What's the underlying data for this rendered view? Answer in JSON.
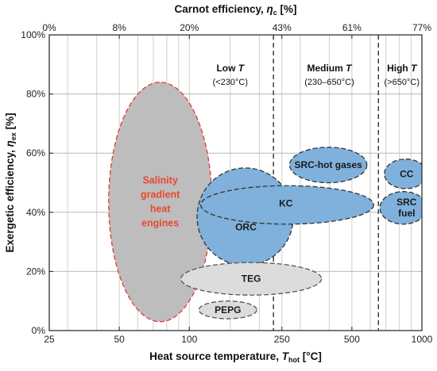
{
  "chart_data": {
    "type": "scatter",
    "title": "",
    "xlabel": {
      "main": "Heat source temperature, ",
      "var": "T",
      "sub": "hot",
      "unit": " [°C]"
    },
    "x2label": {
      "main": "Carnot efficiency, ",
      "var": "η",
      "sub": "c",
      "unit": " [%]"
    },
    "ylabel": {
      "main": "Exergetic efficiency, ",
      "var": "η",
      "sub": "ex",
      "unit": " [%]"
    },
    "x_scale": "log",
    "xlim": [
      25,
      1000
    ],
    "ylim": [
      0,
      100
    ],
    "x_ticks": [
      {
        "value": 25,
        "label": "25"
      },
      {
        "value": 50,
        "label": "50"
      },
      {
        "value": 100,
        "label": "100"
      },
      {
        "value": 250,
        "label": "250"
      },
      {
        "value": 500,
        "label": "500"
      },
      {
        "value": 1000,
        "label": "1000"
      }
    ],
    "x2_ticks": [
      {
        "value": 25,
        "label": "0%"
      },
      {
        "value": 50,
        "label": "8%"
      },
      {
        "value": 100,
        "label": "20%"
      },
      {
        "value": 250,
        "label": "43%"
      },
      {
        "value": 500,
        "label": "61%"
      },
      {
        "value": 1000,
        "label": "77%"
      }
    ],
    "y_ticks": [
      {
        "value": 0,
        "label": "0%"
      },
      {
        "value": 20,
        "label": "20%"
      },
      {
        "value": 40,
        "label": "40%"
      },
      {
        "value": 60,
        "label": "60%"
      },
      {
        "value": 80,
        "label": "80%"
      },
      {
        "value": 100,
        "label": "100%"
      }
    ],
    "x_gridlines": [
      30,
      40,
      50,
      60,
      70,
      80,
      90,
      100,
      150,
      200,
      250,
      300,
      400,
      500,
      600,
      700,
      800,
      900
    ],
    "y_gridlines": [
      20,
      40,
      60,
      80
    ],
    "grid": true,
    "region_separators": [
      230,
      650
    ],
    "regions": [
      {
        "name": "Low",
        "var": "T",
        "range": "(<230°C)",
        "x_center": 150
      },
      {
        "name": "Medium",
        "var": "T",
        "range": "(230–650°C)",
        "x_center": 400
      },
      {
        "name": "High",
        "var": "T",
        "range": "(>650°C)",
        "x_center": 820
      }
    ],
    "technologies": [
      {
        "name": "Salinity gradient heat engines",
        "label_lines": [
          "Salinity",
          "gradient",
          "heat",
          "engines"
        ],
        "x_range": [
          45,
          125
        ],
        "y_range": [
          3,
          84
        ],
        "color": "#bdbdbd",
        "edge": "#e03c31",
        "label_color": "#e8472e"
      },
      {
        "name": "ORC",
        "x_range": [
          108,
          280
        ],
        "y_range": [
          22,
          55
        ],
        "color": "#7fb1dc",
        "edge": "#333333"
      },
      {
        "name": "KC",
        "x_range": [
          112,
          620
        ],
        "y_range": [
          36,
          49
        ],
        "color": "#7fb1dc",
        "edge": "#333333"
      },
      {
        "name": "SRC-hot gases",
        "x_range": [
          270,
          580
        ],
        "y_range": [
          50,
          62
        ],
        "color": "#7fb1dc",
        "edge": "#333333"
      },
      {
        "name": "CC",
        "x_range": [
          690,
          1050
        ],
        "y_range": [
          48,
          58
        ],
        "color": "#7fb1dc",
        "edge": "#333333"
      },
      {
        "name": "SRC fuel",
        "label_lines": [
          "SRC",
          "fuel"
        ],
        "x_range": [
          660,
          1050
        ],
        "y_range": [
          36,
          47
        ],
        "color": "#7fb1dc",
        "edge": "#333333"
      },
      {
        "name": "TEG",
        "x_range": [
          92,
          370
        ],
        "y_range": [
          12,
          23
        ],
        "color": "#dcdcdc",
        "edge": "#555555"
      },
      {
        "name": "PEPG",
        "x_range": [
          110,
          195
        ],
        "y_range": [
          4,
          10
        ],
        "color": "#dcdcdc",
        "edge": "#555555"
      }
    ]
  }
}
